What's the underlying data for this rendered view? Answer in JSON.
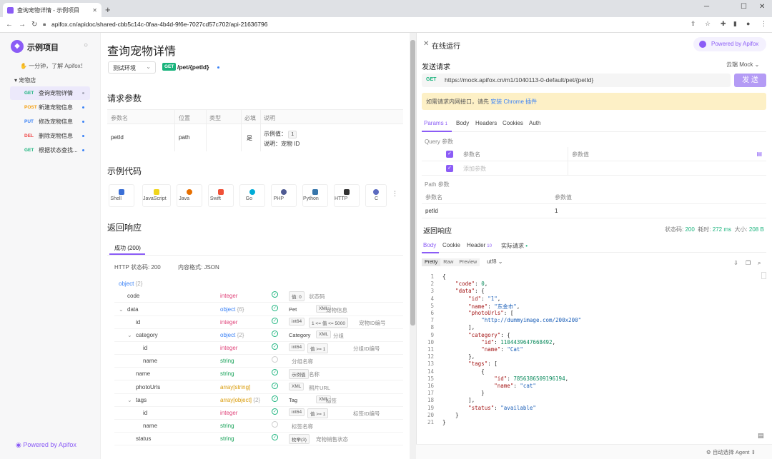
{
  "browser": {
    "tab_title": "查询宠物详情 - 示例项目",
    "url": "apifox.cn/apidoc/shared-cbb5c14c-0faa-4b4d-9f6e-7027cd57c702/api-21636796",
    "new_tab": "+",
    "controls": {
      "minimize": "─",
      "maximize": "☐",
      "close": "✕"
    }
  },
  "sidebar": {
    "project_name": "示例项目",
    "tip": "一分钟，了解 Apifox！",
    "folder": "宠物店",
    "items": [
      {
        "method": "GET",
        "label": "查询宠物详情"
      },
      {
        "method": "POST",
        "label": "新建宠物信息"
      },
      {
        "method": "PUT",
        "label": "修改宠物信息"
      },
      {
        "method": "DEL",
        "label": "删除宠物信息"
      },
      {
        "method": "GET",
        "label": "根据状态查找..."
      }
    ],
    "powered": "Powered by Apifox"
  },
  "doc": {
    "title": "查询宠物详情",
    "env": "测试环境",
    "method": "GET",
    "path": "/pet/{petId}",
    "request_params_heading": "请求参数",
    "param_headers": [
      "参数名",
      "位置",
      "类型",
      "必填",
      "说明"
    ],
    "param_row": {
      "name": "petId",
      "location": "path",
      "required": "是",
      "example_label": "示例值：",
      "example_value": "1",
      "desc": "说明：宠物 ID"
    },
    "sample_code_heading": "示例代码",
    "languages": [
      "Shell",
      "JavaScript",
      "Java",
      "Swift",
      "Go",
      "PHP",
      "Python",
      "HTTP",
      "C"
    ],
    "response_heading": "返回响应",
    "response_tab": "成功 (200)",
    "http_status": "HTTP 状态码: 200",
    "content_type": "内容格式: JSON",
    "schema_root": "object",
    "schema_root_count": "{2}",
    "schema_rows": [
      {
        "name": "code",
        "type": "integer",
        "tag": "值: 0",
        "desc": "状态码"
      },
      {
        "name": "data",
        "type": "object",
        "count": "{6}",
        "label": "Pet",
        "tag": "XML",
        "desc": "宠物信息"
      },
      {
        "name": "id",
        "type": "integer",
        "tag": "int64",
        "tag2": "1 <= 值 <= 5000",
        "desc": "宠物ID编号"
      },
      {
        "name": "category",
        "type": "object",
        "count": "{2}",
        "label": "Category",
        "tag": "XML",
        "desc": "分组"
      },
      {
        "name": "id",
        "type": "integer",
        "tag": "int64",
        "tag2": "值 >= 1",
        "desc": "分组ID编号"
      },
      {
        "name": "name",
        "type": "string",
        "desc": "分组名称"
      },
      {
        "name": "name",
        "type": "string",
        "tag": "示例值",
        "desc": "名称"
      },
      {
        "name": "photoUrls",
        "type": "array[string]",
        "tag": "XML",
        "desc": "照片URL"
      },
      {
        "name": "tags",
        "type": "array[object]",
        "count": "{2}",
        "label": "Tag",
        "tag": "XML",
        "desc": "标签"
      },
      {
        "name": "id",
        "type": "integer",
        "tag": "int64",
        "tag2": "值 >= 1",
        "desc": "标签ID编号"
      },
      {
        "name": "name",
        "type": "string",
        "desc": "标签名称"
      },
      {
        "name": "status",
        "type": "string",
        "tag": "枚举(3)",
        "desc": "宠物销售状态"
      }
    ]
  },
  "runner": {
    "title": "在线运行",
    "powered": "Powered by Apifox",
    "send_heading": "发送请求",
    "mock": "云端 Mock",
    "method": "GET",
    "url": "https://mock.apifox.cn/m1/1040113-0-default/pet/{petId}",
    "send_label": "发 送",
    "warning_text": "如需请求内网接口，请先",
    "warning_link": "安装 Chrome 插件",
    "tabs": [
      "Params",
      "Body",
      "Headers",
      "Cookies",
      "Auth"
    ],
    "params_count": "1",
    "query_label": "Query 参数",
    "query_headers": [
      "参数名",
      "参数值"
    ],
    "query_add": "添加参数",
    "path_label": "Path 参数",
    "path_headers": [
      "参数名",
      "参数值"
    ],
    "path_row": [
      "petId",
      "1"
    ],
    "response_heading": "返回响应",
    "status_label": "状态码:",
    "status_value": "200",
    "time_label": "耗时:",
    "time_value": "272 ms",
    "size_label": "大小:",
    "size_value": "208 B",
    "resp_tabs": [
      "Body",
      "Cookie",
      "Header",
      "实际请求"
    ],
    "header_count": "10",
    "formats": [
      "Pretty",
      "Raw",
      "Preview"
    ],
    "encoding": "utf8",
    "code_lines": [
      "{",
      "    \"code\": 0,",
      "    \"data\": {",
      "        \"id\": \"1\",",
      "        \"name\": \"东金市\",",
      "        \"photoUrls\": [",
      "            \"http://dummyimage.com/200x200\"",
      "        ],",
      "        \"category\": {",
      "            \"id\": 1104439647668492,",
      "            \"name\": \"Cat\"",
      "        },",
      "        \"tags\": [",
      "            {",
      "                \"id\": 7856386509196194,",
      "                \"name\": \"cat\"",
      "            }",
      "        ],",
      "        \"status\": \"available\"",
      "    }",
      "}"
    ],
    "auto_agent": "自动选择 Agent"
  }
}
